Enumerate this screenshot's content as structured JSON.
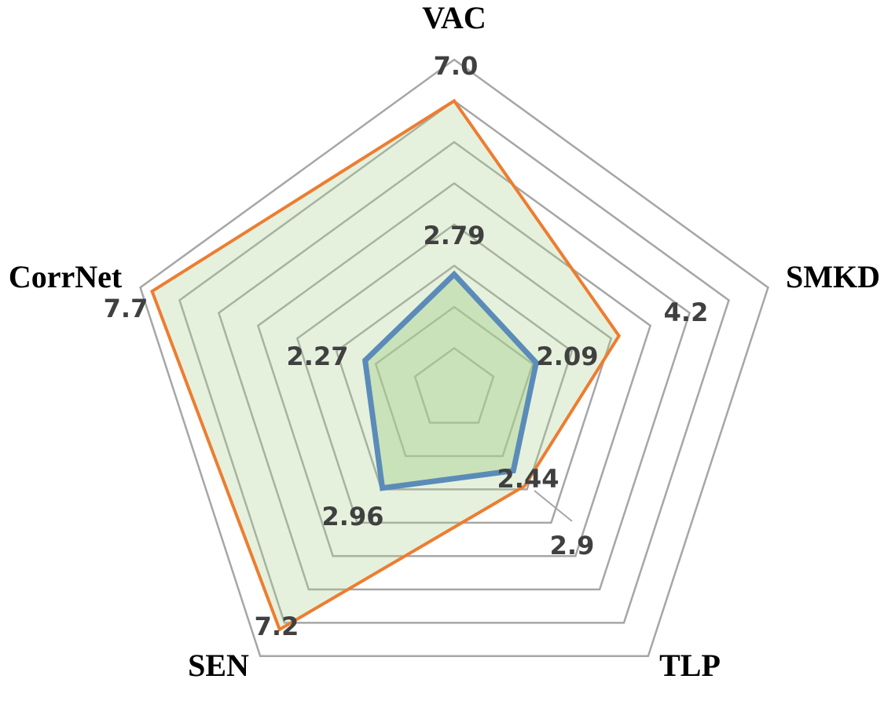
{
  "chart_data": {
    "type": "radar",
    "categories": [
      "VAC",
      "SMKD",
      "TLP",
      "SEN",
      "CorrNet"
    ],
    "rlim": [
      0,
      8
    ],
    "rticks": [
      1,
      2,
      3,
      4,
      5,
      6,
      7,
      8
    ],
    "grid": true,
    "series": [
      {
        "color": "#ED7D31",
        "fill": "#A9D18E",
        "values": [
          7.0,
          4.2,
          2.9,
          7.2,
          7.7
        ],
        "value_labels": [
          "7.0",
          "4.2",
          "2.9",
          "7.2",
          "7.7"
        ]
      },
      {
        "color": "#5B8BB8",
        "fill": "#A9D18E",
        "values": [
          2.79,
          2.09,
          2.44,
          2.96,
          2.27
        ]
      }
    ]
  }
}
